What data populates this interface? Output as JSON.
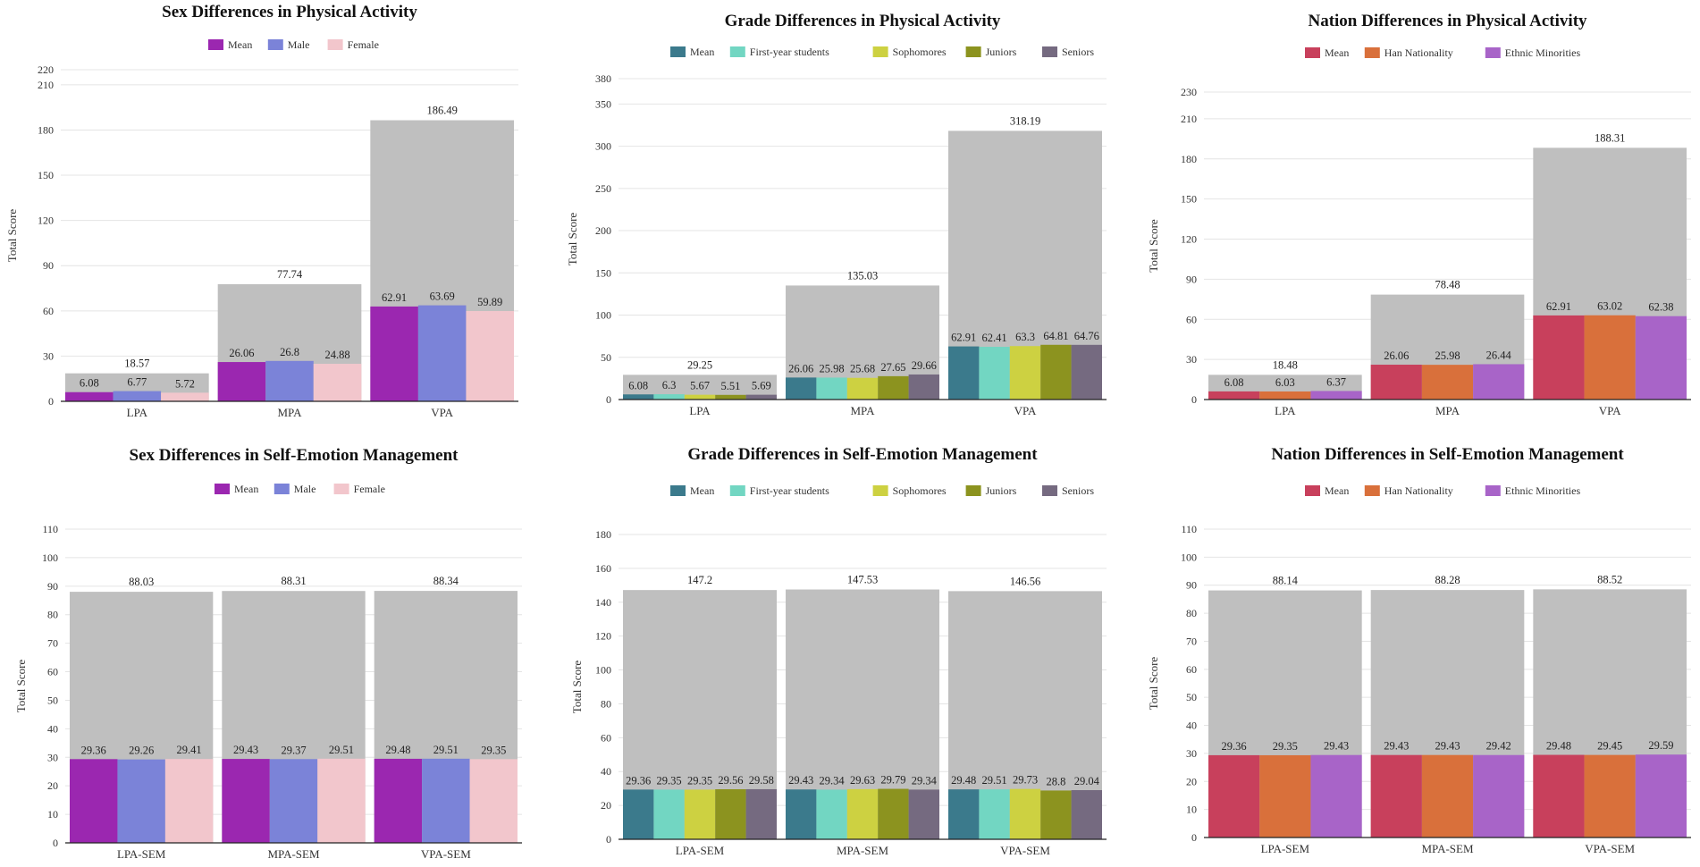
{
  "chart_data": [
    {
      "type": "bar",
      "title": "Sex Differences in  Physical Activity",
      "ylabel": "Total Score",
      "ylim": [
        0,
        220
      ],
      "yticks": [
        0,
        30,
        60,
        90,
        120,
        150,
        180,
        210,
        220
      ],
      "categories": [
        "LPA",
        "MPA",
        "VPA"
      ],
      "totals": [
        18.57,
        77.74,
        186.49
      ],
      "series": [
        {
          "name": "Mean",
          "color": "#9b27b0",
          "values": [
            6.08,
            26.06,
            62.91
          ]
        },
        {
          "name": "Male",
          "color": "#7b83d8",
          "values": [
            6.77,
            26.8,
            63.69
          ]
        },
        {
          "name": "Female",
          "color": "#f2c6cc",
          "values": [
            5.72,
            24.88,
            59.89
          ]
        }
      ]
    },
    {
      "type": "bar",
      "title": "Grade Differences in  Physical Activity",
      "ylabel": "Total Score",
      "ylim": [
        0,
        380
      ],
      "yticks": [
        0,
        50,
        100,
        150,
        200,
        250,
        300,
        350,
        380
      ],
      "categories": [
        "LPA",
        "MPA",
        "VPA"
      ],
      "totals": [
        29.25,
        135.03,
        318.19
      ],
      "series": [
        {
          "name": "Mean",
          "color": "#3b7a8c",
          "values": [
            6.08,
            26.06,
            62.91
          ]
        },
        {
          "name": "First-year students",
          "color": "#72d6c2",
          "values": [
            6.3,
            25.98,
            62.41
          ]
        },
        {
          "name": "Sophomores",
          "color": "#cdd141",
          "values": [
            5.67,
            25.68,
            63.3
          ]
        },
        {
          "name": "Juniors",
          "color": "#8c931f",
          "values": [
            5.51,
            27.65,
            64.81
          ]
        },
        {
          "name": "Seniors",
          "color": "#756a80",
          "values": [
            5.69,
            29.66,
            64.76
          ]
        }
      ]
    },
    {
      "type": "bar",
      "title": "Nation Differences in  Physical Activity",
      "ylabel": "Total Score",
      "ylim": [
        0,
        230
      ],
      "yticks": [
        0,
        30,
        60,
        90,
        120,
        150,
        180,
        210,
        230
      ],
      "categories": [
        "LPA",
        "MPA",
        "VPA"
      ],
      "totals": [
        18.48,
        78.48,
        188.31
      ],
      "series": [
        {
          "name": "Mean",
          "color": "#c8405c",
          "values": [
            6.08,
            26.06,
            62.91
          ]
        },
        {
          "name": "Han Nationality",
          "color": "#d9703b",
          "values": [
            6.03,
            25.98,
            63.02
          ]
        },
        {
          "name": "Ethnic Minorities",
          "color": "#a864c8",
          "values": [
            6.37,
            26.44,
            62.38
          ]
        }
      ]
    },
    {
      "type": "bar",
      "title": "Sex Differences in  Self-Emotion Management",
      "ylabel": "Total Score",
      "ylim": [
        0,
        110
      ],
      "yticks": [
        0,
        10,
        20,
        30,
        40,
        50,
        60,
        70,
        80,
        90,
        100,
        110
      ],
      "categories": [
        "LPA-SEM",
        "MPA-SEM",
        "VPA-SEM"
      ],
      "totals": [
        88.03,
        88.31,
        88.34
      ],
      "series": [
        {
          "name": "Mean",
          "color": "#9b27b0",
          "values": [
            29.36,
            29.43,
            29.48
          ]
        },
        {
          "name": "Male",
          "color": "#7b83d8",
          "values": [
            29.26,
            29.37,
            29.51
          ]
        },
        {
          "name": "Female",
          "color": "#f2c6cc",
          "values": [
            29.41,
            29.51,
            29.35
          ]
        }
      ]
    },
    {
      "type": "bar",
      "title": "Grade Differences in   Self-Emotion Management",
      "ylabel": "Total Score",
      "ylim": [
        0,
        180
      ],
      "yticks": [
        0,
        20,
        40,
        60,
        80,
        100,
        120,
        140,
        160,
        180
      ],
      "categories": [
        "LPA-SEM",
        "MPA-SEM",
        "VPA-SEM"
      ],
      "totals": [
        147.2,
        147.53,
        146.56
      ],
      "series": [
        {
          "name": "Mean",
          "color": "#3b7a8c",
          "values": [
            29.36,
            29.43,
            29.48
          ]
        },
        {
          "name": "First-year students",
          "color": "#72d6c2",
          "values": [
            29.35,
            29.34,
            29.51
          ]
        },
        {
          "name": "Sophomores",
          "color": "#cdd141",
          "values": [
            29.35,
            29.63,
            29.73
          ]
        },
        {
          "name": "Juniors",
          "color": "#8c931f",
          "values": [
            29.56,
            29.79,
            28.8
          ]
        },
        {
          "name": "Seniors",
          "color": "#756a80",
          "values": [
            29.58,
            29.34,
            29.04
          ]
        }
      ]
    },
    {
      "type": "bar",
      "title": "Nation Differences in   Self-Emotion Management",
      "ylabel": "Total Score",
      "ylim": [
        0,
        110
      ],
      "yticks": [
        0,
        10,
        20,
        30,
        40,
        50,
        60,
        70,
        80,
        90,
        100,
        110
      ],
      "categories": [
        "LPA-SEM",
        "MPA-SEM",
        "VPA-SEM"
      ],
      "totals": [
        88.14,
        88.28,
        88.52
      ],
      "series": [
        {
          "name": "Mean",
          "color": "#c8405c",
          "values": [
            29.36,
            29.43,
            29.48
          ]
        },
        {
          "name": "Han Nationality",
          "color": "#d9703b",
          "values": [
            29.35,
            29.43,
            29.45
          ]
        },
        {
          "name": "Ethnic Minorities",
          "color": "#a864c8",
          "values": [
            29.43,
            29.42,
            29.59
          ]
        }
      ]
    }
  ],
  "colors": {
    "total_bar": "#bfbfbf",
    "grid": "#e4e4e4",
    "axis": "#222222"
  }
}
